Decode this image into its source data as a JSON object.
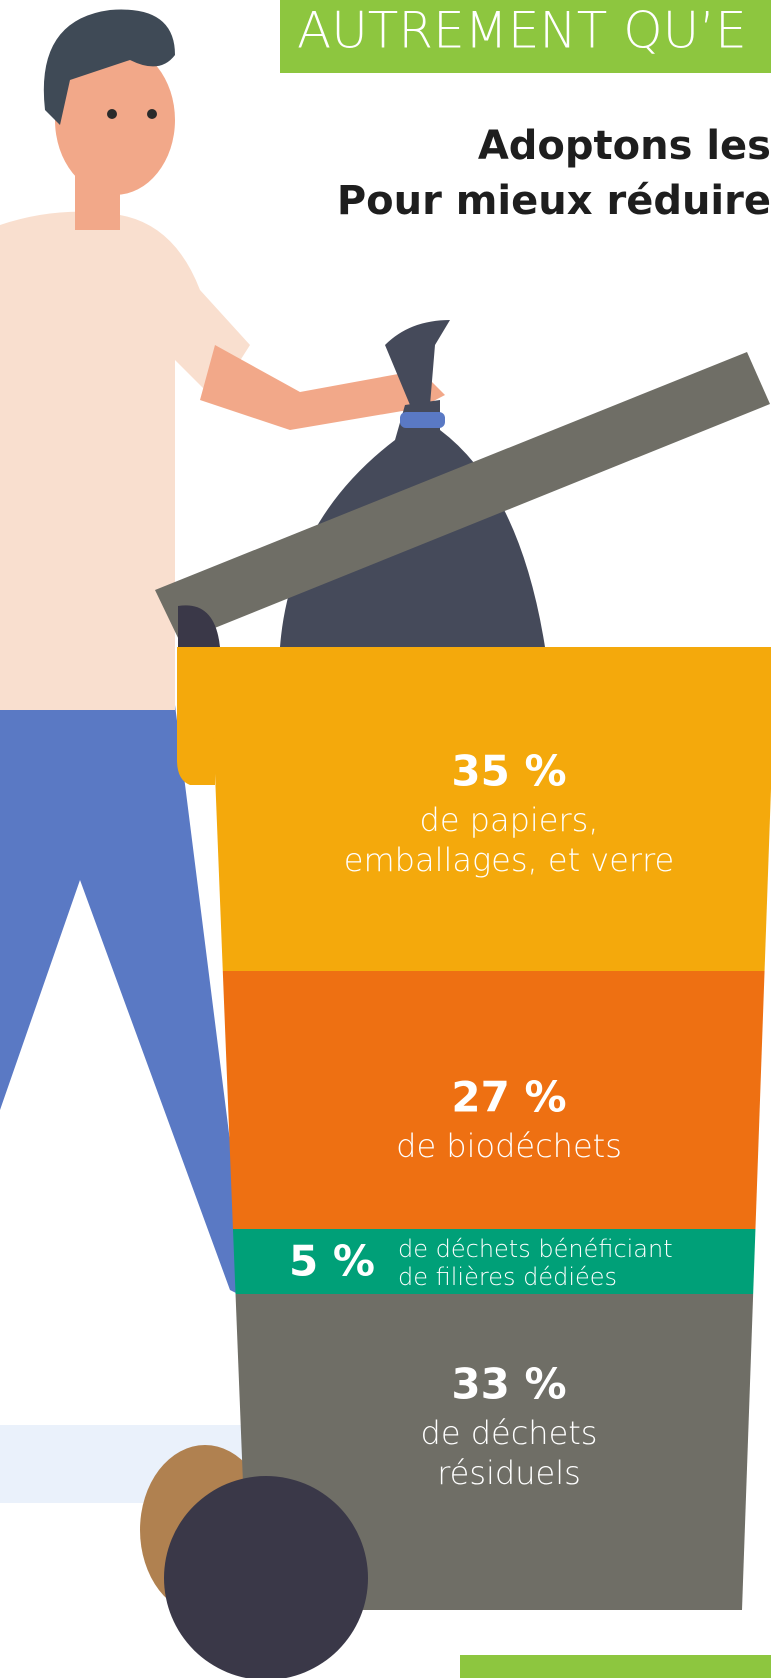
{
  "header": {
    "banner": "AUTREMENT QU’E",
    "line1": "Adoptons les",
    "line2": "Pour mieux réduire"
  },
  "bin": {
    "segments": [
      {
        "percent": "35 %",
        "lines": [
          "de papiers,",
          "emballages, et verre"
        ]
      },
      {
        "percent": "27 %",
        "lines": [
          "de biodéchets"
        ]
      },
      {
        "percent": "5 %",
        "lines": [
          "de déchets bénéficiant",
          "de filières dédiées"
        ]
      },
      {
        "percent": "33 %",
        "lines": [
          "de déchets",
          "résiduels"
        ]
      }
    ]
  }
}
